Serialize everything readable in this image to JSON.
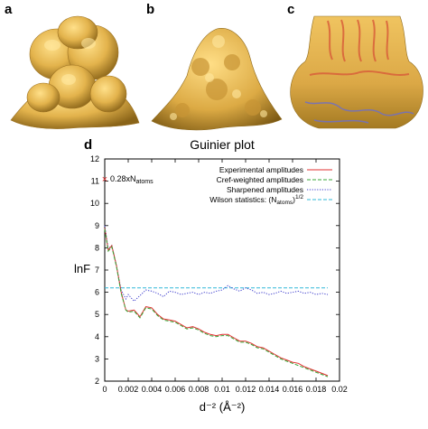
{
  "panels": {
    "a": "a",
    "b": "b",
    "c": "c",
    "d": "d"
  },
  "maps": {
    "density_color": "#e3b34c",
    "shadow_color": "#8a6418",
    "highlight_color": "#ffe08a",
    "model_color_red": "#d9603a",
    "model_color_blue": "#6f6fc4"
  },
  "chart_data": {
    "type": "line",
    "title": "Guinier plot",
    "xlabel": "d⁻² (Å⁻²)",
    "ylabel": "lnF",
    "xlim": [
      0,
      0.02
    ],
    "ylim": [
      2,
      12
    ],
    "x_ticks": [
      0,
      0.002,
      0.004,
      0.006,
      0.008,
      0.01,
      0.012,
      0.014,
      0.016,
      0.018,
      0.02
    ],
    "x_tick_labels": [
      "0",
      "0.002",
      "0.004",
      "0.006",
      "0.008",
      "0.01",
      "0.012",
      "0.014",
      "0.016",
      "0.018",
      "0.02"
    ],
    "y_ticks": [
      2,
      3,
      4,
      5,
      6,
      7,
      8,
      9,
      10,
      11,
      12
    ],
    "y_tick_labels": [
      "2",
      "3",
      "4",
      "5",
      "6",
      "7",
      "8",
      "9",
      "10",
      "11",
      "12"
    ],
    "annotation": {
      "x": 0,
      "y": 11.1,
      "text_main": "0.28xN",
      "text_sub": "atoms",
      "marker_color": "#e03030"
    },
    "legend_position": "top-right",
    "series": [
      {
        "name": "Experimental amplitudes",
        "color": "#e03030",
        "style": "solid",
        "x": [
          0,
          0.0003,
          0.0006,
          0.001,
          0.0014,
          0.0018,
          0.002,
          0.0025,
          0.003,
          0.0035,
          0.004,
          0.0045,
          0.005,
          0.0055,
          0.006,
          0.0065,
          0.007,
          0.0075,
          0.008,
          0.0085,
          0.009,
          0.0095,
          0.01,
          0.0105,
          0.011,
          0.0115,
          0.012,
          0.0125,
          0.013,
          0.0135,
          0.014,
          0.0145,
          0.015,
          0.0155,
          0.016,
          0.0165,
          0.017,
          0.0175,
          0.018,
          0.0185,
          0.019
        ],
        "y": [
          8.9,
          7.9,
          8.1,
          7.2,
          6.0,
          5.2,
          5.15,
          5.2,
          4.9,
          5.35,
          5.3,
          5.0,
          4.8,
          4.75,
          4.7,
          4.55,
          4.4,
          4.45,
          4.35,
          4.2,
          4.1,
          4.05,
          4.1,
          4.1,
          3.95,
          3.8,
          3.8,
          3.7,
          3.55,
          3.5,
          3.35,
          3.2,
          3.05,
          2.95,
          2.85,
          2.8,
          2.65,
          2.55,
          2.45,
          2.35,
          2.25
        ]
      },
      {
        "name": "Cref-weighted amplitudes",
        "color": "#38a838",
        "style": "dashed",
        "x": [
          0,
          0.0003,
          0.0006,
          0.001,
          0.0014,
          0.0018,
          0.002,
          0.0025,
          0.003,
          0.0035,
          0.004,
          0.0045,
          0.005,
          0.0055,
          0.006,
          0.0065,
          0.007,
          0.0075,
          0.008,
          0.0085,
          0.009,
          0.0095,
          0.01,
          0.0105,
          0.011,
          0.0115,
          0.012,
          0.0125,
          0.013,
          0.0135,
          0.014,
          0.0145,
          0.015,
          0.0155,
          0.016,
          0.0165,
          0.017,
          0.0175,
          0.018,
          0.0185,
          0.019
        ],
        "y": [
          8.85,
          7.85,
          8.05,
          7.15,
          5.95,
          5.2,
          5.1,
          5.15,
          4.85,
          5.3,
          5.25,
          4.95,
          4.75,
          4.7,
          4.65,
          4.5,
          4.35,
          4.4,
          4.3,
          4.15,
          4.05,
          4.0,
          4.05,
          4.05,
          3.9,
          3.75,
          3.75,
          3.65,
          3.5,
          3.45,
          3.3,
          3.15,
          3.0,
          2.9,
          2.8,
          2.7,
          2.6,
          2.5,
          2.4,
          2.3,
          2.2
        ]
      },
      {
        "name": "Sharpened amplitudes",
        "color": "#3a3acc",
        "style": "dotted",
        "x": [
          0,
          0.0003,
          0.0006,
          0.001,
          0.0014,
          0.0018,
          0.002,
          0.0025,
          0.003,
          0.0035,
          0.004,
          0.0045,
          0.005,
          0.0055,
          0.006,
          0.0065,
          0.007,
          0.0075,
          0.008,
          0.0085,
          0.009,
          0.0095,
          0.01,
          0.0105,
          0.011,
          0.0115,
          0.012,
          0.0125,
          0.013,
          0.0135,
          0.014,
          0.0145,
          0.015,
          0.0155,
          0.016,
          0.0165,
          0.017,
          0.0175,
          0.018,
          0.0185,
          0.019
        ],
        "y": [
          9.0,
          7.95,
          8.1,
          7.2,
          6.1,
          5.7,
          5.9,
          5.6,
          5.85,
          6.1,
          6.05,
          5.95,
          5.8,
          6.05,
          6.0,
          5.9,
          5.95,
          6.0,
          5.9,
          6.0,
          5.95,
          6.05,
          6.1,
          6.3,
          6.15,
          6.05,
          6.2,
          6.1,
          5.95,
          6.0,
          5.9,
          5.95,
          6.05,
          5.95,
          6.0,
          6.05,
          5.95,
          6.0,
          5.9,
          5.95,
          5.9
        ]
      },
      {
        "name": "Wilson statistics: (N",
        "name_sub": "atoms",
        "name_tail": ")",
        "name_sup": "1/2",
        "color": "#30b8d8",
        "style": "dashed",
        "x": [
          0,
          0.019
        ],
        "y": [
          6.2,
          6.2
        ]
      }
    ]
  }
}
